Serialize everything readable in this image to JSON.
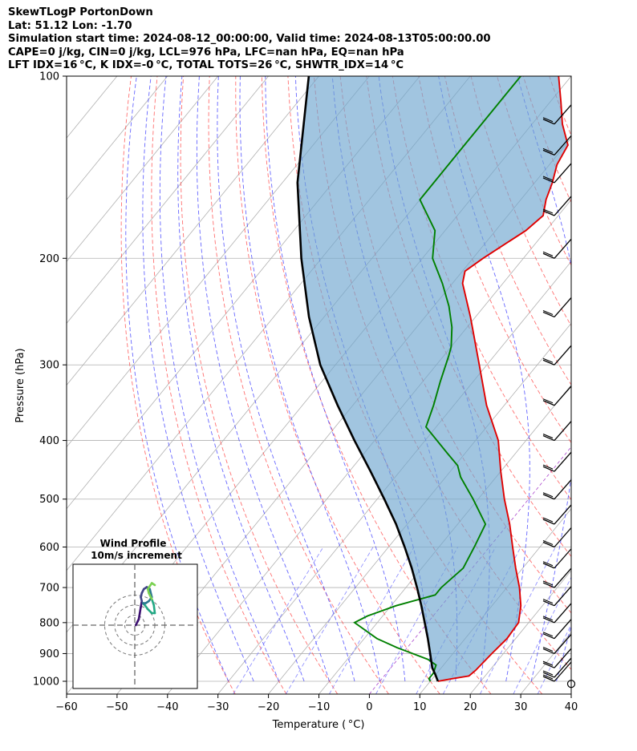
{
  "header": {
    "line1": "SkewTLogP PortonDown",
    "line2": "Lat: 51.12   Lon: -1.70",
    "line3": "Simulation start time: 2024-08-12_00:00:00, Valid time: 2024-08-13T05:00:00.00",
    "line4": "CAPE=0 j/kg, CIN=0 j/kg, LCL=976 hPa, LFC=nan hPa, EQ=nan hPa",
    "line5": "LFT IDX=16 °C, K IDX=-0 °C, TOTAL TOTS=26 °C, SHWTR_IDX=14 °C"
  },
  "chart_data": {
    "type": "line",
    "subtype": "skew-T log-p diagram",
    "xlabel": "Temperature ( °C)",
    "ylabel": "Pressure (hPa)",
    "xlim": [
      -60,
      40
    ],
    "ylim": [
      1050,
      100
    ],
    "x_ticks": [
      -60,
      -50,
      -40,
      -30,
      -20,
      -10,
      0,
      10,
      20,
      30,
      40
    ],
    "y_ticks": [
      1000,
      900,
      800,
      700,
      600,
      500,
      400,
      300,
      200,
      100
    ],
    "grid": true,
    "y_scale": "log",
    "colors": {
      "temperature": "#e00000",
      "dewpoint": "#008000",
      "parcel": "#000000",
      "cape_shade": "#6fa6cf",
      "dry_adiabat": "#ff4040",
      "moist_adiabat": "#3333ff",
      "mixing_ratio": "#7777ff",
      "isotherm_0": "#aa44cc"
    },
    "series": [
      {
        "name": "Temperature",
        "points": [
          [
            1000,
            11.5
          ],
          [
            990,
            14
          ],
          [
            980,
            16.8
          ],
          [
            960,
            17.2
          ],
          [
            900,
            17.7
          ],
          [
            850,
            18.3
          ],
          [
            800,
            18.0
          ],
          [
            750,
            15.7
          ],
          [
            700,
            12.5
          ],
          [
            650,
            8.6
          ],
          [
            600,
            4.6
          ],
          [
            550,
            0.3
          ],
          [
            500,
            -4.8
          ],
          [
            450,
            -10.0
          ],
          [
            400,
            -15.5
          ],
          [
            350,
            -23.5
          ],
          [
            300,
            -31.5
          ],
          [
            250,
            -41.0
          ],
          [
            220,
            -48.0
          ],
          [
            210,
            -49.5
          ],
          [
            200,
            -48.0
          ],
          [
            180,
            -44.0
          ],
          [
            170,
            -43.0
          ],
          [
            160,
            -45.0
          ],
          [
            150,
            -46.5
          ],
          [
            140,
            -48.5
          ],
          [
            130,
            -49.5
          ],
          [
            120,
            -54.0
          ],
          [
            110,
            -58.0
          ],
          [
            100,
            -62.5
          ]
        ]
      },
      {
        "name": "Dewpoint",
        "points": [
          [
            1000,
            10.0
          ],
          [
            990,
            9.3
          ],
          [
            970,
            9.3
          ],
          [
            940,
            8.5
          ],
          [
            920,
            6.0
          ],
          [
            880,
            -2.0
          ],
          [
            850,
            -7.5
          ],
          [
            800,
            -14.5
          ],
          [
            780,
            -13.0
          ],
          [
            750,
            -9.0
          ],
          [
            720,
            -3.0
          ],
          [
            700,
            -3.0
          ],
          [
            650,
            -1.8
          ],
          [
            600,
            -3.0
          ],
          [
            550,
            -4.5
          ],
          [
            500,
            -11.0
          ],
          [
            460,
            -17.0
          ],
          [
            440,
            -19.5
          ],
          [
            420,
            -23.5
          ],
          [
            380,
            -32.0
          ],
          [
            350,
            -34.0
          ],
          [
            320,
            -36.5
          ],
          [
            290,
            -39.0
          ],
          [
            280,
            -40.0
          ],
          [
            260,
            -43.0
          ],
          [
            240,
            -47.0
          ],
          [
            220,
            -52.0
          ],
          [
            200,
            -58.0
          ],
          [
            180,
            -62.0
          ],
          [
            160,
            -70.0
          ],
          [
            130,
            -70.0
          ],
          [
            100,
            -70.0
          ]
        ]
      },
      {
        "name": "Parcel",
        "points": [
          [
            1000,
            11.5
          ],
          [
            976,
            10.0
          ],
          [
            950,
            8.2
          ],
          [
            900,
            5.5
          ],
          [
            850,
            2.6
          ],
          [
            800,
            -0.6
          ],
          [
            750,
            -4.0
          ],
          [
            700,
            -7.8
          ],
          [
            650,
            -12.0
          ],
          [
            600,
            -16.8
          ],
          [
            550,
            -22.2
          ],
          [
            500,
            -28.6
          ],
          [
            450,
            -35.8
          ],
          [
            400,
            -44.0
          ],
          [
            350,
            -53.0
          ],
          [
            300,
            -63.0
          ],
          [
            250,
            -73.0
          ],
          [
            200,
            -84.0
          ],
          [
            150,
            -97.0
          ],
          [
            100,
            -112.0
          ]
        ]
      }
    ],
    "wind_barbs_pressure_hPa": [
      1010,
      1000,
      985,
      950,
      900,
      850,
      800,
      750,
      700,
      650,
      600,
      550,
      500,
      450,
      400,
      350,
      300,
      250,
      200,
      170,
      150,
      135,
      120
    ]
  },
  "hodograph": {
    "title": "Wind Profile",
    "subtitle": "10m/s increment",
    "rings": [
      10,
      20,
      30
    ],
    "points_uv": [
      [
        1,
        0
      ],
      [
        3,
        2
      ],
      [
        4,
        3
      ],
      [
        5,
        6
      ],
      [
        6,
        9
      ],
      [
        7,
        12
      ],
      [
        6,
        14
      ],
      [
        7,
        16
      ],
      [
        9,
        18
      ],
      [
        12,
        19
      ],
      [
        15,
        18
      ],
      [
        17,
        14
      ],
      [
        14,
        12
      ],
      [
        11,
        11
      ],
      [
        8,
        11
      ],
      [
        10,
        10
      ],
      [
        13,
        8
      ],
      [
        17,
        6
      ],
      [
        20,
        6
      ],
      [
        19,
        10
      ],
      [
        17,
        13
      ],
      [
        14,
        16
      ],
      [
        13,
        18
      ],
      [
        17,
        21
      ],
      [
        20,
        20
      ]
    ]
  }
}
